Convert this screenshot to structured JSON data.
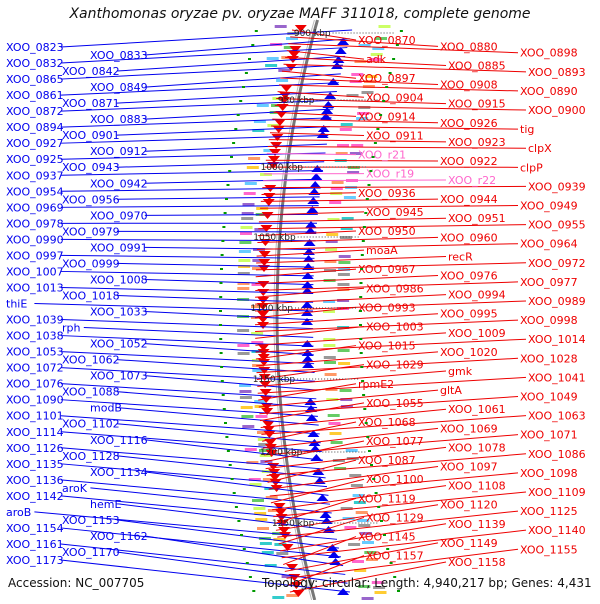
{
  "title": "Xanthomonas oryzae pv. oryzae MAFF 311018, complete genome",
  "footer": {
    "accession": "Accession: NC_007705",
    "summary": "Topology: circular; Length: 4,940,217 bp; Genes: 4,431"
  },
  "colors": {
    "left_genes": "#0000ee",
    "right_genes": "#ee0000",
    "rna_genes": "#ff66cc",
    "backbone": "#777777",
    "tick": "#009900"
  },
  "scale_labels": [
    "900 kbp",
    "950 kbp",
    "1000 kbp",
    "1050 kbp",
    "1100 kbp",
    "1150 kbp",
    "1200 kbp",
    "1250 kbp"
  ],
  "left_labels": [
    "XOO_0823",
    "XOO_0833",
    "XOO_0832",
    "XOO_0842",
    "XOO_0865",
    "XOO_0849",
    "XOO_0861",
    "XOO_0871",
    "XOO_0872",
    "XOO_0883",
    "XOO_0894",
    "XOO_0901",
    "XOO_0927",
    "XOO_0912",
    "XOO_0925",
    "XOO_0943",
    "XOO_0937",
    "XOO_0942",
    "XOO_0954",
    "XOO_0956",
    "XOO_0969",
    "XOO_0970",
    "XOO_0978",
    "XOO_0979",
    "XOO_0990",
    "XOO_0991",
    "XOO_0997",
    "XOO_0999",
    "XOO_1007",
    "XOO_1008",
    "XOO_1013",
    "XOO_1018",
    "thiE",
    "XOO_1033",
    "XOO_1039",
    "rph",
    "XOO_1038",
    "XOO_1052",
    "XOO_1053",
    "XOO_1062",
    "XOO_1072",
    "XOO_1073",
    "XOO_1076",
    "XOO_1088",
    "XOO_1090",
    "modB",
    "XOO_1101",
    "XOO_1102",
    "XOO_1114",
    "XOO_1116",
    "XOO_1126",
    "XOO_1128",
    "XOO_1135",
    "XOO_1134",
    "XOO_1136",
    "aroK",
    "XOO_1142",
    "hemE",
    "aroB",
    "XOO_1153",
    "XOO_1154",
    "XOO_1162",
    "XOO_1161",
    "XOO_1170",
    "XOO_1173"
  ],
  "right_labels": [
    "XOO_0870",
    "XOO_0880",
    "XOO_0898",
    "adk",
    "XOO_0885",
    "XOO_0893",
    "XOO_0897",
    "XOO_0908",
    "XOO_0890",
    "XOO_0904",
    "XOO_0915",
    "XOO_0900",
    "XOO_0914",
    "XOO_0926",
    "tig",
    "XOO_0911",
    "XOO_0923",
    "clpX",
    "XOO_r21",
    "XOO_0922",
    "clpP",
    "XOO_r19",
    "XOO_r22",
    "XOO_0939",
    "XOO_0936",
    "XOO_0944",
    "XOO_0949",
    "XOO_0945",
    "XOO_0951",
    "XOO_0955",
    "XOO_0950",
    "XOO_0960",
    "XOO_0964",
    "moaA",
    "recR",
    "XOO_0972",
    "XOO_0967",
    "XOO_0976",
    "XOO_0977",
    "XOO_0986",
    "XOO_0994",
    "XOO_0989",
    "XOO_0993",
    "XOO_0995",
    "XOO_0998",
    "XOO_1003",
    "XOO_1009",
    "XOO_1014",
    "XOO_1015",
    "XOO_1020",
    "XOO_1028",
    "XOO_1029",
    "gmk",
    "XOO_1041",
    "rpmE2",
    "gltA",
    "XOO_1049",
    "XOO_1055",
    "XOO_1061",
    "XOO_1063",
    "XOO_1068",
    "XOO_1069",
    "XOO_1071",
    "XOO_1077",
    "XOO_1078",
    "XOO_1086",
    "XOO_1087",
    "XOO_1097",
    "XOO_1098",
    "XOO_1100",
    "XOO_1108",
    "XOO_1109",
    "XOO_1119",
    "XOO_1120",
    "XOO_1125",
    "XOO_1129",
    "XOO_1139",
    "XOO_1140",
    "XOO_1145",
    "XOO_1149",
    "XOO_1155",
    "XOO_1157",
    "XOO_1158"
  ]
}
